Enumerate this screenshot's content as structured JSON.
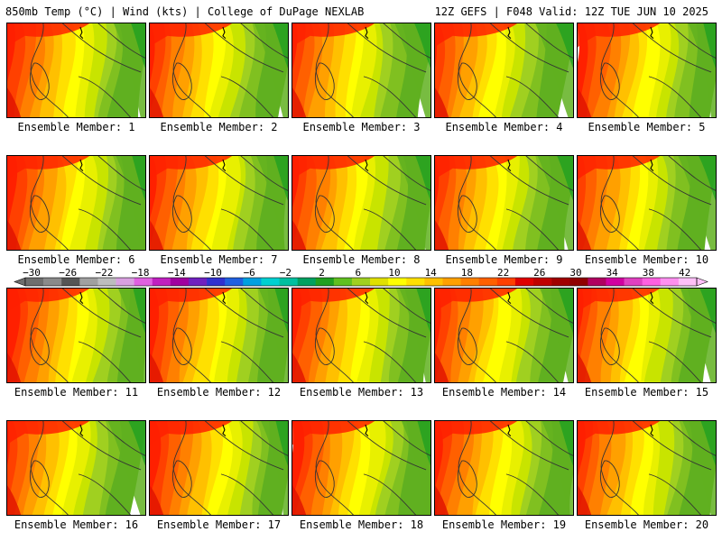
{
  "header": {
    "left": "850mb Temp (°C) | Wind (kts) | College of DuPage NEXLAB",
    "right": "12Z GEFS | F048 Valid: 12Z TUE JUN 10 2025"
  },
  "members": [
    "Ensemble Member: 1",
    "Ensemble Member: 2",
    "Ensemble Member: 3",
    "Ensemble Member: 4",
    "Ensemble Member: 5",
    "Ensemble Member: 6",
    "Ensemble Member: 7",
    "Ensemble Member: 8",
    "Ensemble Member: 9",
    "Ensemble Member: 10",
    "Ensemble Member: 11",
    "Ensemble Member: 12",
    "Ensemble Member: 13",
    "Ensemble Member: 14",
    "Ensemble Member: 15",
    "Ensemble Member: 16",
    "Ensemble Member: 17",
    "Ensemble Member: 18",
    "Ensemble Member: 19",
    "Ensemble Member: 20"
  ],
  "colorbar": {
    "labels": [
      "−30",
      "−26",
      "−22",
      "−18",
      "−14",
      "−10",
      "−6",
      "−2",
      "2",
      "6",
      "10",
      "14",
      "18",
      "22",
      "26",
      "30",
      "34",
      "38",
      "42"
    ],
    "colors": [
      "#6e6e6e",
      "#8a8a8a",
      "#555555",
      "#a0a0a0",
      "#bdbdbd",
      "#d9a0e0",
      "#e060e0",
      "#c020c0",
      "#a000a0",
      "#7020c0",
      "#3030d0",
      "#2060e0",
      "#00a0e0",
      "#00d0d0",
      "#00c0a0",
      "#00a060",
      "#20a020",
      "#60c020",
      "#a0d020",
      "#e0e000",
      "#ffff00",
      "#ffe000",
      "#ffc000",
      "#ffa000",
      "#ff8000",
      "#ff6000",
      "#ff4000",
      "#e00000",
      "#c00000",
      "#a00000",
      "#900000",
      "#b00060",
      "#d000a0",
      "#e040c0",
      "#ff60e0",
      "#ff90f0",
      "#ffc0f8"
    ]
  },
  "field_colors": [
    "#ff2000",
    "#ff4000",
    "#ff6000",
    "#ff8000",
    "#ffa000",
    "#ffc000",
    "#ffe000",
    "#ffff00",
    "#e8f000",
    "#c8e400",
    "#a0d020",
    "#80c020",
    "#60b020"
  ]
}
